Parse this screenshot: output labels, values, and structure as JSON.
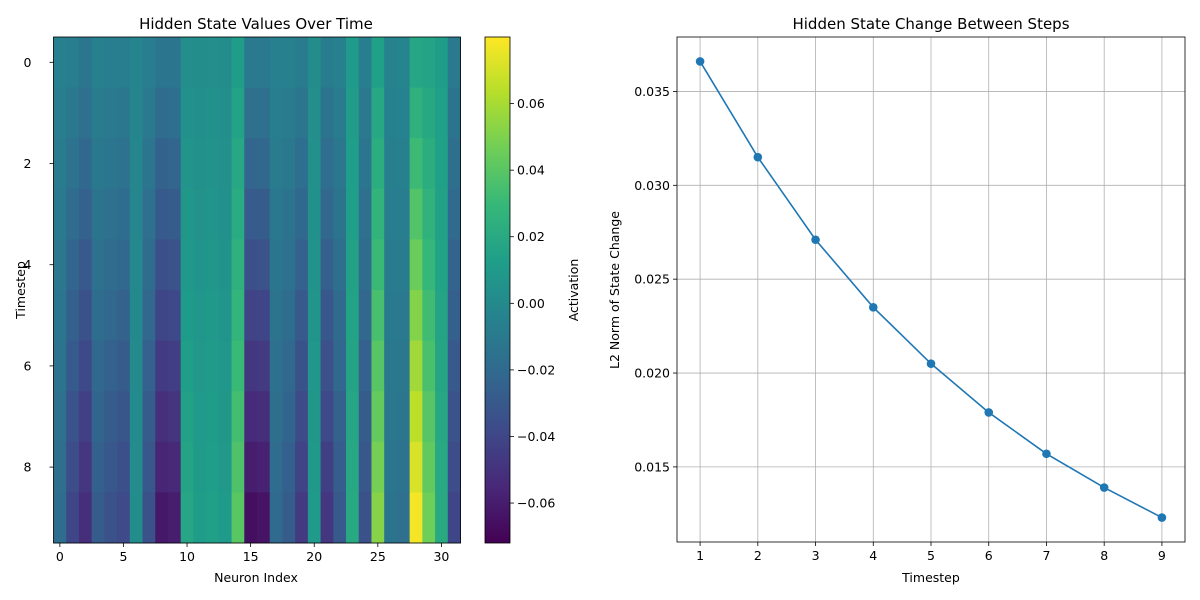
{
  "chart_data": [
    {
      "type": "heatmap",
      "title": "Hidden State Values Over Time",
      "xlabel": "Neuron Index",
      "ylabel": "Timestep",
      "colormap": "viridis",
      "colorbar_label": "Activation",
      "colorbar_range": [
        -0.072,
        0.08
      ],
      "colorbar_ticks": [
        "0.06",
        "0.04",
        "0.02",
        "0.00",
        "−0.02",
        "−0.04",
        "−0.06"
      ],
      "colorbar_tick_values": [
        0.06,
        0.04,
        0.02,
        0.0,
        -0.02,
        -0.04,
        -0.06
      ],
      "x_ticks": [
        "0",
        "5",
        "10",
        "15",
        "20",
        "25",
        "30"
      ],
      "x_tick_values": [
        0,
        5,
        10,
        15,
        20,
        25,
        30
      ],
      "y_ticks": [
        "0",
        "2",
        "4",
        "6",
        "8"
      ],
      "y_tick_values": [
        0,
        2,
        4,
        6,
        8
      ],
      "n_rows": 10,
      "n_cols": 32,
      "final_values": [
        -0.018,
        -0.04,
        -0.052,
        -0.028,
        -0.034,
        -0.038,
        0.002,
        -0.034,
        -0.062,
        -0.06,
        0.018,
        0.012,
        0.014,
        0.01,
        0.04,
        -0.066,
        -0.064,
        -0.02,
        -0.028,
        -0.046,
        0.01,
        -0.048,
        -0.03,
        0.02,
        -0.034,
        0.052,
        -0.014,
        -0.016,
        0.078,
        0.046,
        0.02,
        -0.04
      ],
      "base_values": [
        -0.006,
        -0.008,
        -0.012,
        -0.006,
        -0.007,
        -0.008,
        -0.003,
        -0.007,
        -0.013,
        -0.012,
        0.003,
        0.002,
        0.003,
        0.002,
        0.012,
        -0.01,
        -0.01,
        -0.006,
        -0.006,
        -0.009,
        0.002,
        -0.009,
        -0.006,
        0.01,
        -0.007,
        0.014,
        -0.004,
        -0.003,
        0.018,
        0.016,
        0.012,
        -0.01
      ]
    },
    {
      "type": "line",
      "title": "Hidden State Change Between Steps",
      "xlabel": "Timestep",
      "ylabel": "L2 Norm of State Change",
      "x": [
        1,
        2,
        3,
        4,
        5,
        6,
        7,
        8,
        9
      ],
      "values": [
        0.0366,
        0.0315,
        0.0271,
        0.0235,
        0.0205,
        0.0179,
        0.0157,
        0.0139,
        0.0123
      ],
      "xlim": [
        0.6,
        9.4
      ],
      "ylim": [
        0.011,
        0.0379
      ],
      "x_ticks": [
        "1",
        "2",
        "3",
        "4",
        "5",
        "6",
        "7",
        "8",
        "9"
      ],
      "y_ticks": [
        "0.035",
        "0.030",
        "0.025",
        "0.020",
        "0.015"
      ],
      "y_tick_values": [
        0.035,
        0.03,
        0.025,
        0.02,
        0.015
      ],
      "grid": true,
      "color": "#1f77b4"
    }
  ]
}
